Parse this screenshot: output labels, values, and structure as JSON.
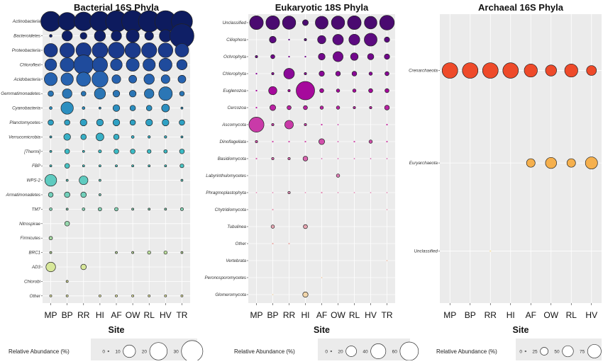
{
  "chart_data": [
    {
      "type": "scatter",
      "title": "Bacterial 16S Phyla",
      "xlabel": "Site",
      "ylabel": "",
      "sites": [
        "MP",
        "BP",
        "RR",
        "HI",
        "AF",
        "OW",
        "RL",
        "HV",
        "TR"
      ],
      "categories": [
        "Actinobacteria",
        "Bacteroidetes",
        "Proteobacteria",
        "Chloroflexi",
        "Acidobacteria",
        "Gemmatimonadetes",
        "Cyanobacteria",
        "Planctomycetes",
        "Verrucomicrobia",
        "[Thermi]",
        "FBP",
        "WPS-2",
        "Armatimonadetes",
        "TM7",
        "Nitrospirae",
        "Firmicutes",
        "BRC1",
        "AD3",
        "Chlorobi",
        "Other"
      ],
      "values": [
        [
          26,
          21,
          23,
          26,
          30,
          32,
          30,
          30,
          29
        ],
        [
          0.5,
          7,
          3,
          8,
          7,
          11,
          5,
          10,
          38
        ],
        [
          12,
          14,
          15,
          16,
          17,
          16,
          15,
          14,
          12
        ],
        [
          9,
          13,
          25,
          15,
          9,
          11,
          10,
          11,
          7
        ],
        [
          11,
          10,
          13,
          17,
          5,
          4,
          7,
          5,
          4
        ],
        [
          2,
          6,
          1.5,
          8,
          3,
          3,
          6,
          12,
          1.5
        ],
        [
          0.5,
          10,
          0.5,
          0.3,
          3,
          2,
          2,
          4,
          0.3
        ],
        [
          2,
          2,
          3,
          3,
          3,
          2,
          3,
          3,
          2
        ],
        [
          0.3,
          3,
          2,
          4,
          2,
          0.5,
          0.4,
          0.4,
          0.3
        ],
        [
          0.3,
          1.5,
          0.3,
          0.6,
          1.5,
          1.5,
          1,
          0.8,
          1.5
        ],
        [
          0.3,
          1.5,
          0.3,
          0.3,
          0.3,
          0.3,
          0.3,
          0.3,
          1
        ],
        [
          9,
          0.3,
          5,
          0.3,
          0,
          0,
          0,
          0,
          0.3
        ],
        [
          1.5,
          2,
          2,
          0.3,
          0,
          0,
          0,
          0,
          0
        ],
        [
          0.5,
          0.3,
          0.5,
          0.8,
          0.8,
          0.3,
          0.3,
          0.3,
          0.6
        ],
        [
          0,
          1.5,
          0,
          0,
          0,
          0,
          0,
          0,
          0
        ],
        [
          0.8,
          0,
          0,
          0,
          0,
          0,
          0,
          0,
          0
        ],
        [
          0.3,
          0,
          0,
          0,
          0.3,
          0.3,
          0.7,
          0.7,
          0.3
        ],
        [
          6,
          0,
          2,
          0,
          0,
          0,
          0,
          0,
          0
        ],
        [
          0,
          0.3,
          0,
          0,
          0,
          0,
          0,
          0,
          0
        ],
        [
          0.3,
          0.3,
          0,
          0.3,
          0.3,
          0.3,
          0.3,
          0.3,
          0.3
        ]
      ],
      "colors": [
        "#0d1b5e",
        "#0f1f66",
        "#1a3a8c",
        "#1f4b9c",
        "#2763b0",
        "#2b76b5",
        "#2c8fc0",
        "#2fa1c4",
        "#38b0c6",
        "#3cbcc6",
        "#49c4c3",
        "#5fcbc0",
        "#72d0bb",
        "#85d4b5",
        "#98d8ae",
        "#a9dca5",
        "#bde09d",
        "#d8e89a",
        "#e8ee9e",
        "#f0f3a6"
      ],
      "size_max": 38,
      "legend_title": "Relative Abundance (%)",
      "legend_values": [
        0,
        10,
        20,
        30
      ]
    },
    {
      "type": "scatter",
      "title": "Eukaryotic 18S Phyla",
      "xlabel": "Site",
      "ylabel": "",
      "sites": [
        "MP",
        "BP",
        "RR",
        "HI",
        "AF",
        "OW",
        "RL",
        "HV",
        "TR"
      ],
      "categories": [
        "Unclassified",
        "Ciliophora",
        "Ochrophyta",
        "Chlorophyta",
        "Euglenozoa",
        "Cercozoa",
        "Ascomycota",
        "Dinoflagellata",
        "Basidiomycota",
        "Labyrinthulomycetes",
        "Phragmoplastophyta",
        "Chytridiomycota",
        "Tubulinea",
        "Other",
        "Vertebrata",
        "Peronosporomycetes",
        "Glomeromycota"
      ],
      "values": [
        [
          33,
          33,
          31,
          6,
          29,
          31,
          33,
          28,
          38
        ],
        [
          0,
          8,
          0.5,
          1,
          12,
          20,
          21,
          29,
          5
        ],
        [
          1,
          3,
          0.5,
          0.5,
          8,
          18,
          10,
          7,
          5
        ],
        [
          0.5,
          1,
          20,
          1,
          5,
          4,
          4,
          2,
          3
        ],
        [
          0.5,
          12,
          1,
          60,
          3,
          2,
          2,
          3,
          3
        ],
        [
          0.5,
          6,
          3,
          3,
          2,
          2,
          1,
          1,
          4
        ],
        [
          40,
          1,
          13,
          1,
          0.5,
          0.3,
          0,
          0,
          0.5
        ],
        [
          1,
          0.5,
          0.5,
          0.5,
          6,
          0.3,
          0.5,
          2,
          0.5
        ],
        [
          0.5,
          1,
          1,
          4,
          0.3,
          0.3,
          0.3,
          0.3,
          0.3
        ],
        [
          0,
          0,
          0,
          0,
          0,
          2,
          0,
          0,
          0
        ],
        [
          0.3,
          0.3,
          1,
          0.3,
          0.5,
          0.3,
          0.3,
          0.3,
          0.3
        ],
        [
          0,
          0.5,
          0,
          0,
          0,
          0,
          0,
          0,
          0.3
        ],
        [
          0,
          2,
          0,
          3,
          0,
          0,
          0,
          0,
          0
        ],
        [
          0,
          0.5,
          0.5,
          0,
          0,
          0,
          0,
          0,
          0
        ],
        [
          0,
          0,
          0,
          0,
          0,
          0,
          0,
          0,
          0.3
        ],
        [
          0,
          0,
          0,
          0,
          0.3,
          0,
          0,
          0,
          0
        ],
        [
          0,
          0.3,
          0,
          5,
          0,
          0,
          0,
          0,
          0
        ]
      ],
      "colors": [
        "#4a0a70",
        "#5c0a80",
        "#72088c",
        "#8a0898",
        "#a6099c",
        "#bb23a4",
        "#c93aa8",
        "#d24fac",
        "#d966b0",
        "#df7bb4",
        "#e48db6",
        "#e89eb8",
        "#eaa8b4",
        "#ecb4b0",
        "#eec0ac",
        "#f0caa8",
        "#f2d6ab"
      ],
      "size_max": 60,
      "legend_title": "Relative Abundance (%)",
      "legend_values": [
        0,
        20,
        40,
        60
      ]
    },
    {
      "type": "scatter",
      "title": "Archaeal 16S Phyla",
      "xlabel": "Site",
      "ylabel": "",
      "sites": [
        "MP",
        "BP",
        "RR",
        "HI",
        "AF",
        "OW",
        "RL",
        "HV"
      ],
      "categories": [
        "Crenarchaeota",
        "Euryarchaeota",
        "Unclassified"
      ],
      "values": [
        [
          99,
          99,
          99,
          98,
          70,
          50,
          70,
          40
        ],
        [
          0,
          0,
          0,
          0,
          30,
          50,
          30,
          60
        ],
        [
          0,
          0,
          1,
          0,
          0,
          0,
          0,
          0
        ]
      ],
      "colors": [
        "#ee4a2a",
        "#f5b04e",
        "#f8e3a8"
      ],
      "size_max": 99,
      "legend_title": "Relative Abundance (%)",
      "legend_values": [
        0,
        25,
        50,
        75
      ]
    }
  ]
}
